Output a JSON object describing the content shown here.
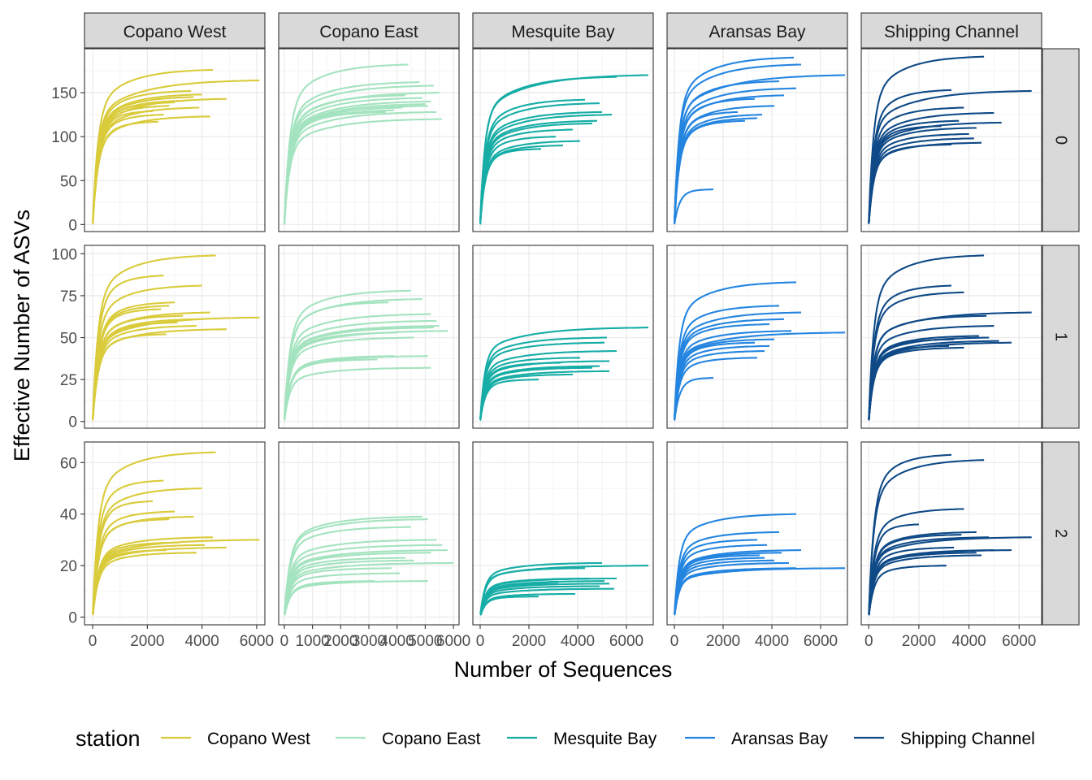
{
  "chart_data": {
    "type": "line",
    "title": "",
    "xlabel": "Number of Sequences",
    "ylabel": "Effective Number of ASVs",
    "legend": {
      "title": "station",
      "position": "bottom"
    },
    "facet_columns": [
      "Copano West",
      "Copano East",
      "Mesquite Bay",
      "Aransas Bay",
      "Shipping Channel"
    ],
    "facet_rows": [
      "0",
      "1",
      "2"
    ],
    "colors": {
      "Copano West": "#d9cb3a",
      "Copano East": "#a4e3bf",
      "Mesquite Bay": "#16ada6",
      "Aransas Bay": "#2485e0",
      "Shipping Channel": "#0f4a87"
    },
    "x_axis": {
      "default": {
        "range": [
          -300,
          6300
        ],
        "ticks": [
          0,
          2000,
          4000,
          6000
        ],
        "tick_labels": [
          "0",
          "2000",
          "4000",
          "6000"
        ]
      },
      "Copano East": {
        "range": [
          -200,
          6200
        ],
        "ticks": [
          0,
          1000,
          2000,
          3000,
          4000,
          5000,
          6000
        ],
        "tick_labels": [
          "0",
          "1000",
          "2000",
          "3000",
          "4000",
          "5000",
          "6000"
        ]
      },
      "Mesquite Bay": {
        "range": [
          -300,
          7100
        ],
        "ticks": [
          0,
          2000,
          4000,
          6000
        ],
        "tick_labels": [
          "0",
          "2000",
          "4000",
          "6000"
        ]
      },
      "Aransas Bay": {
        "range": [
          -300,
          7100
        ],
        "ticks": [
          0,
          2000,
          4000,
          6000
        ],
        "tick_labels": [
          "0",
          "2000",
          "4000",
          "6000"
        ]
      },
      "Shipping Channel": {
        "range": [
          -300,
          6900
        ],
        "ticks": [
          0,
          2000,
          4000,
          6000
        ],
        "tick_labels": [
          "0",
          "2000",
          "4000",
          "6000"
        ]
      }
    },
    "y_axis": {
      "0": {
        "range": [
          -8,
          200
        ],
        "ticks": [
          0,
          50,
          100,
          150
        ],
        "tick_labels": [
          "0",
          "50",
          "100",
          "150"
        ]
      },
      "1": {
        "range": [
          -4,
          105
        ],
        "ticks": [
          0,
          25,
          50,
          75,
          100
        ],
        "tick_labels": [
          "0",
          "25",
          "50",
          "75",
          "100"
        ]
      },
      "2": {
        "range": [
          -3,
          68
        ],
        "ticks": [
          0,
          20,
          40,
          60
        ],
        "tick_labels": [
          "0",
          "20",
          "40",
          "60"
        ]
      }
    },
    "curve_endpoints": {
      "Copano West": {
        "0": [
          [
            4400,
            176
          ],
          [
            6100,
            164
          ],
          [
            4900,
            143
          ],
          [
            3700,
            145
          ],
          [
            3400,
            141
          ],
          [
            2800,
            135
          ],
          [
            3900,
            133
          ],
          [
            2600,
            125
          ],
          [
            4300,
            123
          ],
          [
            2400,
            117
          ],
          [
            3000,
            139
          ],
          [
            4000,
            148
          ],
          [
            3600,
            152
          ],
          [
            2200,
            129
          ]
        ],
        "1": [
          [
            4500,
            99
          ],
          [
            2600,
            87
          ],
          [
            4000,
            81
          ],
          [
            3000,
            71
          ],
          [
            2800,
            69
          ],
          [
            3900,
            61
          ],
          [
            6100,
            62
          ],
          [
            4300,
            65
          ],
          [
            4900,
            55
          ],
          [
            2700,
            52
          ],
          [
            3100,
            59
          ],
          [
            3800,
            57
          ],
          [
            2500,
            67
          ],
          [
            3300,
            63
          ]
        ],
        "2": [
          [
            4500,
            64
          ],
          [
            2600,
            53
          ],
          [
            4000,
            50
          ],
          [
            2200,
            45
          ],
          [
            3000,
            41
          ],
          [
            3700,
            39
          ],
          [
            2800,
            38
          ],
          [
            4400,
            31
          ],
          [
            6100,
            30
          ],
          [
            4900,
            27
          ],
          [
            3200,
            29
          ],
          [
            2700,
            26
          ],
          [
            3800,
            25
          ],
          [
            4100,
            28
          ]
        ]
      },
      "Copano East": {
        "0": [
          [
            4400,
            182
          ],
          [
            5300,
            158
          ],
          [
            5500,
            150
          ],
          [
            4900,
            144
          ],
          [
            5200,
            140
          ],
          [
            5000,
            137
          ],
          [
            4200,
            133
          ],
          [
            5400,
            128
          ],
          [
            3900,
            130
          ],
          [
            5600,
            120
          ],
          [
            4300,
            147
          ],
          [
            3600,
            128
          ],
          [
            4800,
            162
          ],
          [
            5100,
            135
          ]
        ],
        "1": [
          [
            4500,
            78
          ],
          [
            4900,
            73
          ],
          [
            3700,
            71
          ],
          [
            5200,
            64
          ],
          [
            5400,
            60
          ],
          [
            5500,
            57
          ],
          [
            5800,
            54
          ],
          [
            5300,
            56
          ],
          [
            4000,
            53
          ],
          [
            4600,
            50
          ],
          [
            3900,
            39
          ],
          [
            5100,
            39
          ],
          [
            3300,
            37
          ],
          [
            5200,
            32
          ]
        ],
        "2": [
          [
            4900,
            39
          ],
          [
            5100,
            38
          ],
          [
            4500,
            35
          ],
          [
            5400,
            30
          ],
          [
            5600,
            28
          ],
          [
            5800,
            26
          ],
          [
            5200,
            25
          ],
          [
            6000,
            21
          ],
          [
            4300,
            23
          ],
          [
            3800,
            19
          ],
          [
            5100,
            14
          ],
          [
            4100,
            17
          ],
          [
            3200,
            14
          ],
          [
            4600,
            22
          ]
        ]
      },
      "Mesquite Bay": {
        "0": [
          [
            5600,
            168
          ],
          [
            6900,
            170
          ],
          [
            4300,
            142
          ],
          [
            4900,
            138
          ],
          [
            5400,
            125
          ],
          [
            5000,
            128
          ],
          [
            4600,
            115
          ],
          [
            3800,
            108
          ],
          [
            4100,
            95
          ],
          [
            3400,
            90
          ],
          [
            2500,
            86
          ],
          [
            4800,
            118
          ],
          [
            3100,
            100
          ]
        ],
        "1": [
          [
            6900,
            56
          ],
          [
            5200,
            50
          ],
          [
            5100,
            47
          ],
          [
            5600,
            42
          ],
          [
            5300,
            36
          ],
          [
            4900,
            33
          ],
          [
            5300,
            30
          ],
          [
            4600,
            32
          ],
          [
            3800,
            28
          ],
          [
            2400,
            25
          ],
          [
            4100,
            38
          ],
          [
            3300,
            35
          ]
        ],
        "2": [
          [
            5000,
            21
          ],
          [
            6900,
            20
          ],
          [
            4300,
            19
          ],
          [
            5600,
            15
          ],
          [
            5100,
            14
          ],
          [
            5300,
            13
          ],
          [
            4900,
            12
          ],
          [
            5500,
            11
          ],
          [
            3900,
            9
          ],
          [
            2400,
            8
          ],
          [
            4500,
            15
          ],
          [
            3200,
            13
          ]
        ]
      },
      "Aransas Bay": {
        "0": [
          [
            4900,
            190
          ],
          [
            5200,
            182
          ],
          [
            7000,
            170
          ],
          [
            4300,
            163
          ],
          [
            4500,
            147
          ],
          [
            3300,
            143
          ],
          [
            4100,
            135
          ],
          [
            3600,
            125
          ],
          [
            2900,
            118
          ],
          [
            3400,
            121
          ],
          [
            1600,
            40
          ],
          [
            5000,
            155
          ],
          [
            2600,
            128
          ]
        ],
        "1": [
          [
            5000,
            83
          ],
          [
            4300,
            69
          ],
          [
            5200,
            65
          ],
          [
            3900,
            58
          ],
          [
            4800,
            54
          ],
          [
            7000,
            53
          ],
          [
            4100,
            49
          ],
          [
            3300,
            47
          ],
          [
            3900,
            45
          ],
          [
            3700,
            42
          ],
          [
            1600,
            26
          ],
          [
            4500,
            61
          ],
          [
            3400,
            38
          ]
        ],
        "2": [
          [
            5000,
            40
          ],
          [
            4300,
            33
          ],
          [
            3400,
            30
          ],
          [
            3800,
            28
          ],
          [
            5200,
            26
          ],
          [
            4400,
            25
          ],
          [
            3500,
            24
          ],
          [
            4700,
            21
          ],
          [
            4100,
            22
          ],
          [
            5000,
            19
          ],
          [
            7000,
            19
          ],
          [
            1600,
            17
          ],
          [
            3700,
            23
          ]
        ]
      },
      "Shipping Channel": {
        "0": [
          [
            4600,
            191
          ],
          [
            3300,
            153
          ],
          [
            6500,
            152
          ],
          [
            3800,
            133
          ],
          [
            5000,
            127
          ],
          [
            5300,
            116
          ],
          [
            3600,
            118
          ],
          [
            4300,
            110
          ],
          [
            4000,
            103
          ],
          [
            4200,
            98
          ],
          [
            3300,
            91
          ],
          [
            4500,
            93
          ],
          [
            2900,
            112
          ]
        ],
        "1": [
          [
            4600,
            99
          ],
          [
            3300,
            81
          ],
          [
            3800,
            77
          ],
          [
            6500,
            65
          ],
          [
            4700,
            63
          ],
          [
            5000,
            57
          ],
          [
            4400,
            51
          ],
          [
            3400,
            49
          ],
          [
            4800,
            50
          ],
          [
            5200,
            48
          ],
          [
            5700,
            47
          ],
          [
            3800,
            44
          ],
          [
            3200,
            45
          ]
        ],
        "2": [
          [
            3300,
            63
          ],
          [
            4600,
            61
          ],
          [
            3800,
            42
          ],
          [
            2000,
            36
          ],
          [
            4300,
            33
          ],
          [
            3700,
            32
          ],
          [
            6500,
            31
          ],
          [
            4800,
            31
          ],
          [
            5000,
            26
          ],
          [
            4300,
            25
          ],
          [
            5700,
            26
          ],
          [
            3400,
            27
          ],
          [
            4500,
            24
          ],
          [
            3100,
            20
          ]
        ]
      }
    }
  }
}
